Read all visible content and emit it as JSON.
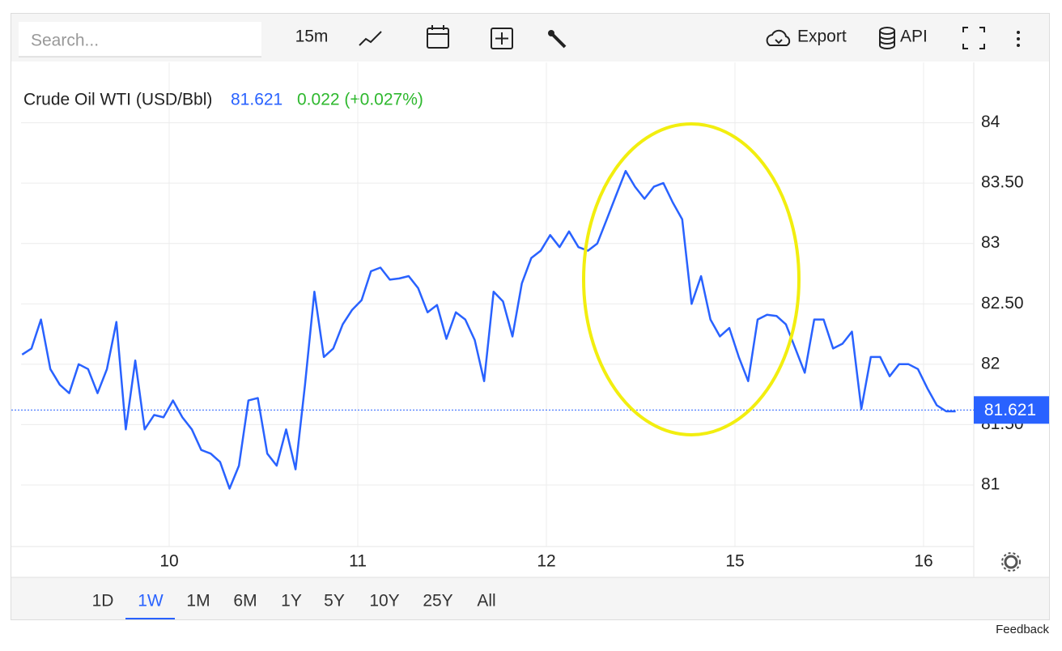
{
  "toolbar": {
    "search_placeholder": "Search...",
    "interval": "15m",
    "export": "Export",
    "api": "API"
  },
  "ranges": [
    "1D",
    "1W",
    "1M",
    "6M",
    "1Y",
    "5Y",
    "10Y",
    "25Y",
    "All"
  ],
  "feedback": "Feedback",
  "chart_data": {
    "type": "line",
    "title": "Crude Oil WTI (USD/Bbl)",
    "last_value": 81.621,
    "change_label": "0.022 (+0.027%)",
    "x": [
      -0.78,
      -0.73,
      -0.68,
      -0.63,
      -0.58,
      -0.53,
      -0.48,
      -0.43,
      -0.38,
      -0.33,
      -0.28,
      -0.23,
      -0.18,
      -0.13,
      -0.08,
      -0.03,
      0.02,
      0.07,
      0.12,
      0.17,
      0.22,
      0.27,
      0.32,
      0.37,
      0.42,
      0.47,
      0.52,
      0.57,
      0.62,
      0.67,
      0.72,
      0.77,
      0.82,
      0.87,
      0.92,
      0.97,
      1.02,
      1.07,
      1.12,
      1.17,
      1.22,
      1.27,
      1.32,
      1.37,
      1.42,
      1.47,
      1.52,
      1.57,
      1.62,
      1.67,
      1.72,
      1.77,
      1.82,
      1.87,
      1.92,
      1.97,
      2.02,
      2.07,
      2.12,
      2.17,
      2.22,
      2.27,
      2.32,
      2.37,
      2.42,
      2.47,
      2.52,
      2.57,
      2.62,
      2.67,
      2.72,
      2.77,
      2.82,
      2.87,
      2.92,
      2.97,
      3.02,
      3.07,
      3.12,
      3.17,
      3.22,
      3.27,
      3.32,
      3.37,
      3.42,
      3.47,
      3.52,
      3.57,
      3.62,
      3.67,
      3.72,
      3.77,
      3.82,
      3.87,
      3.92,
      3.97,
      4.02,
      4.07,
      4.12,
      4.17
    ],
    "series": [
      {
        "name": "Crude Oil WTI (USD/Bbl)",
        "color": "#2962ff",
        "values": [
          82.08,
          82.13,
          82.37,
          81.96,
          81.83,
          81.76,
          82.0,
          81.96,
          81.76,
          81.96,
          82.35,
          81.46,
          82.03,
          81.46,
          81.58,
          81.56,
          81.7,
          81.56,
          81.46,
          81.29,
          81.26,
          81.19,
          80.97,
          81.16,
          81.7,
          81.72,
          81.26,
          81.16,
          81.46,
          81.13,
          81.83,
          82.6,
          82.06,
          82.13,
          82.33,
          82.45,
          82.53,
          82.77,
          82.8,
          82.7,
          82.71,
          82.73,
          82.63,
          82.43,
          82.49,
          82.21,
          82.43,
          82.37,
          82.2,
          81.86,
          82.6,
          82.52,
          82.23,
          82.67,
          82.88,
          82.94,
          83.07,
          82.97,
          83.1,
          82.97,
          82.94,
          83.0,
          83.2,
          83.4,
          83.6,
          83.47,
          83.37,
          83.47,
          83.5,
          83.34,
          83.2,
          82.5,
          82.73,
          82.37,
          82.23,
          82.3,
          82.06,
          81.86,
          82.37,
          82.41,
          82.4,
          82.33,
          82.13,
          81.93,
          82.37,
          82.37,
          82.13,
          82.17,
          82.27,
          81.63,
          82.06,
          82.06,
          81.9,
          82.0,
          82.0,
          81.96,
          81.8,
          81.66,
          81.61,
          81.61
        ]
      }
    ],
    "xlim": [
      -0.837,
      4.266
    ],
    "xticks": [
      {
        "value": 0,
        "label": "10"
      },
      {
        "value": 1,
        "label": "11"
      },
      {
        "value": 2,
        "label": "12"
      },
      {
        "value": 3,
        "label": "15"
      },
      {
        "value": 4,
        "label": "16"
      }
    ],
    "ylim": [
      80.49,
      84.5
    ],
    "yticks": [
      81,
      {
        "value": 81.5,
        "label": "81.50"
      },
      82,
      {
        "value": 82.5,
        "label": "82.50"
      },
      83,
      {
        "value": 83.5,
        "label": "83.50"
      },
      84
    ],
    "grid": true
  }
}
